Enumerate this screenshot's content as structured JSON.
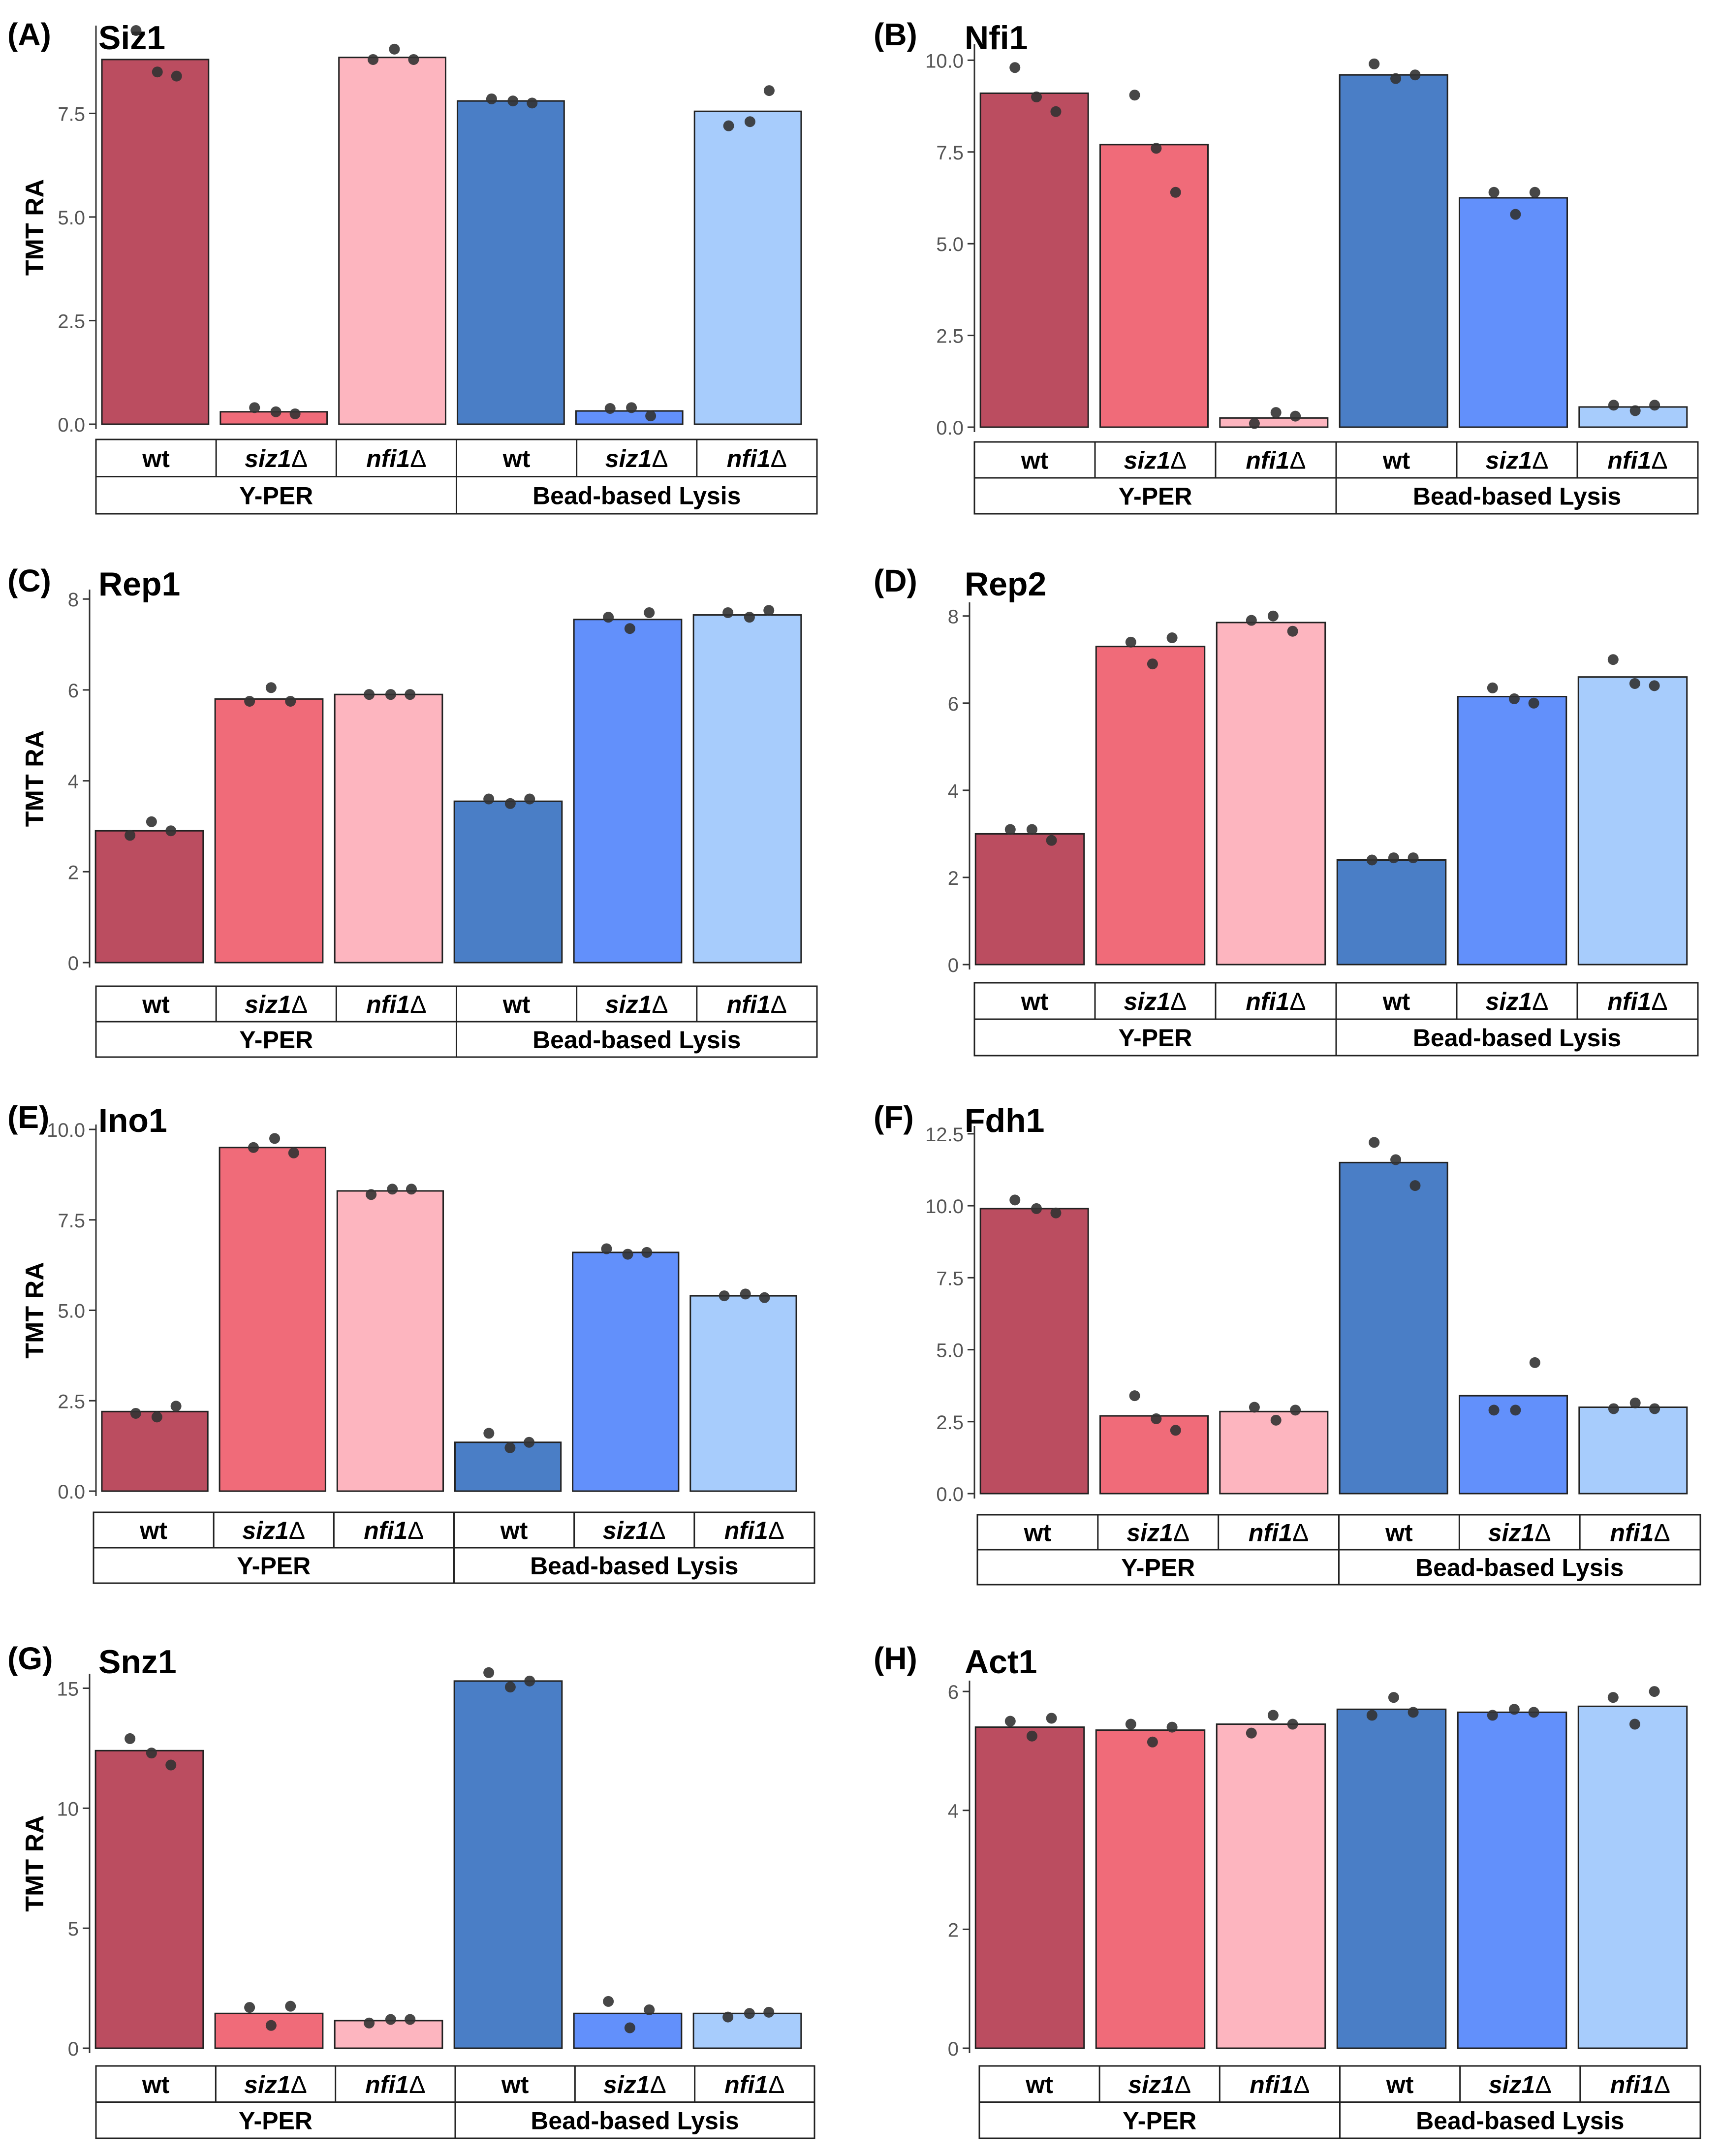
{
  "figure": {
    "y_label": "TMT RA"
  },
  "chart_data": [
    {
      "panel": "(A)",
      "type": "bar",
      "title": "Siz1",
      "ylabel": "TMT RA",
      "ylim": [
        0,
        9.5
      ],
      "ticks": [
        "0.0",
        "2.5",
        "5.0",
        "7.5"
      ],
      "tick_values": [
        0,
        2.5,
        5,
        7.5
      ],
      "categories": [
        "wt",
        "siz1Δ",
        "nfi1Δ",
        "wt",
        "siz1Δ",
        "nfi1Δ"
      ],
      "groups": [
        "Y-PER",
        "Bead-based Lysis"
      ],
      "values": [
        8.8,
        0.3,
        8.85,
        7.8,
        0.32,
        7.55
      ],
      "points": [
        [
          9.5,
          8.5,
          8.4
        ],
        [
          0.4,
          0.3,
          0.25
        ],
        [
          8.8,
          9.05,
          8.8
        ],
        [
          7.85,
          7.8,
          7.75
        ],
        [
          0.38,
          0.4,
          0.2
        ],
        [
          7.2,
          7.3,
          8.05
        ]
      ]
    },
    {
      "panel": "(B)",
      "type": "bar",
      "title": "Nfi1",
      "ylabel": "",
      "ylim": [
        0,
        10.3
      ],
      "ticks": [
        "0.0",
        "2.5",
        "5.0",
        "7.5",
        "10.0"
      ],
      "tick_values": [
        0,
        2.5,
        5,
        7.5,
        10
      ],
      "categories": [
        "wt",
        "siz1Δ",
        "nfi1Δ",
        "wt",
        "siz1Δ",
        "nfi1Δ"
      ],
      "groups": [
        "Y-PER",
        "Bead-based Lysis"
      ],
      "values": [
        9.1,
        7.7,
        0.25,
        9.6,
        6.25,
        0.55
      ],
      "points": [
        [
          9.8,
          9.0,
          8.6
        ],
        [
          9.05,
          7.6,
          6.4
        ],
        [
          0.1,
          0.4,
          0.3
        ],
        [
          9.9,
          9.5,
          9.6
        ],
        [
          6.4,
          5.8,
          6.4
        ],
        [
          0.6,
          0.45,
          0.6
        ]
      ]
    },
    {
      "panel": "(C)",
      "type": "bar",
      "title": "Rep1",
      "ylabel": "TMT RA",
      "ylim": [
        0,
        8.1
      ],
      "ticks": [
        "0",
        "2",
        "4",
        "6",
        "8"
      ],
      "tick_values": [
        0,
        2,
        4,
        6,
        8
      ],
      "categories": [
        "wt",
        "siz1Δ",
        "nfi1Δ",
        "wt",
        "siz1Δ",
        "nfi1Δ"
      ],
      "groups": [
        "Y-PER",
        "Bead-based Lysis"
      ],
      "values": [
        2.9,
        5.8,
        5.9,
        3.55,
        7.55,
        7.65
      ],
      "points": [
        [
          2.8,
          3.1,
          2.9
        ],
        [
          5.75,
          6.05,
          5.75
        ],
        [
          5.9,
          5.9,
          5.9
        ],
        [
          3.6,
          3.5,
          3.6
        ],
        [
          7.6,
          7.35,
          7.7
        ],
        [
          7.7,
          7.6,
          7.75
        ]
      ]
    },
    {
      "panel": "(D)",
      "type": "bar",
      "title": "Rep2",
      "ylabel": "",
      "ylim": [
        0,
        8.2
      ],
      "ticks": [
        "0",
        "2",
        "4",
        "6",
        "8"
      ],
      "tick_values": [
        0,
        2,
        4,
        6,
        8
      ],
      "categories": [
        "wt",
        "siz1Δ",
        "nfi1Δ",
        "wt",
        "siz1Δ",
        "nfi1Δ"
      ],
      "groups": [
        "Y-PER",
        "Bead-based Lysis"
      ],
      "values": [
        3.0,
        7.3,
        7.85,
        2.4,
        6.15,
        6.6
      ],
      "points": [
        [
          3.1,
          3.1,
          2.85
        ],
        [
          7.4,
          6.9,
          7.5
        ],
        [
          7.9,
          8.0,
          7.65
        ],
        [
          2.4,
          2.45,
          2.45
        ],
        [
          6.35,
          6.1,
          6.0
        ],
        [
          7.0,
          6.45,
          6.4
        ]
      ]
    },
    {
      "panel": "(E)",
      "type": "bar",
      "title": "Ino1",
      "ylabel": "TMT RA",
      "ylim": [
        0,
        10.0
      ],
      "ticks": [
        "0.0",
        "2.5",
        "5.0",
        "7.5",
        "10.0"
      ],
      "tick_values": [
        0,
        2.5,
        5,
        7.5,
        10
      ],
      "categories": [
        "wt",
        "siz1Δ",
        "nfi1Δ",
        "wt",
        "siz1Δ",
        "nfi1Δ"
      ],
      "groups": [
        "Y-PER",
        "Bead-based Lysis"
      ],
      "values": [
        2.2,
        9.5,
        8.3,
        1.35,
        6.6,
        5.4
      ],
      "points": [
        [
          2.15,
          2.05,
          2.35
        ],
        [
          9.5,
          9.75,
          9.35
        ],
        [
          8.2,
          8.35,
          8.35
        ],
        [
          1.6,
          1.2,
          1.35
        ],
        [
          6.7,
          6.55,
          6.6
        ],
        [
          5.4,
          5.45,
          5.35
        ]
      ]
    },
    {
      "panel": "(F)",
      "type": "bar",
      "title": "Fdh1",
      "ylabel": "",
      "ylim": [
        0,
        12.6
      ],
      "ticks": [
        "0.0",
        "2.5",
        "5.0",
        "7.5",
        "10.0",
        "12.5"
      ],
      "tick_values": [
        0,
        2.5,
        5,
        7.5,
        10,
        12.5
      ],
      "categories": [
        "wt",
        "siz1Δ",
        "nfi1Δ",
        "wt",
        "siz1Δ",
        "nfi1Δ"
      ],
      "groups": [
        "Y-PER",
        "Bead-based Lysis"
      ],
      "values": [
        9.9,
        2.7,
        2.85,
        11.5,
        3.4,
        3.0
      ],
      "points": [
        [
          10.2,
          9.9,
          9.75
        ],
        [
          3.4,
          2.6,
          2.2
        ],
        [
          3.0,
          2.55,
          2.9
        ],
        [
          12.2,
          11.6,
          10.7
        ],
        [
          2.9,
          2.9,
          4.55
        ],
        [
          2.95,
          3.15,
          2.95
        ]
      ]
    },
    {
      "panel": "(G)",
      "type": "bar",
      "title": "Snz1",
      "ylabel": "TMT RA",
      "ylim": [
        0,
        15.4
      ],
      "ticks": [
        "0",
        "5",
        "10",
        "15"
      ],
      "tick_values": [
        0,
        5,
        10,
        15
      ],
      "categories": [
        "wt",
        "siz1Δ",
        "nfi1Δ",
        "wt",
        "siz1Δ",
        "nfi1Δ"
      ],
      "groups": [
        "Y-PER",
        "Bead-based Lysis"
      ],
      "values": [
        12.4,
        1.45,
        1.15,
        15.3,
        1.45,
        1.45
      ],
      "points": [
        [
          12.9,
          12.3,
          11.8
        ],
        [
          1.7,
          0.95,
          1.75
        ],
        [
          1.05,
          1.2,
          1.2
        ],
        [
          15.65,
          15.05,
          15.3
        ],
        [
          1.95,
          0.85,
          1.6
        ],
        [
          1.3,
          1.45,
          1.5
        ]
      ]
    },
    {
      "panel": "(H)",
      "type": "bar",
      "title": "Act1",
      "ylabel": "",
      "ylim": [
        0,
        6.1
      ],
      "ticks": [
        "0",
        "2",
        "4",
        "6"
      ],
      "tick_values": [
        0,
        2,
        4,
        6
      ],
      "categories": [
        "wt",
        "siz1Δ",
        "nfi1Δ",
        "wt",
        "siz1Δ",
        "nfi1Δ"
      ],
      "groups": [
        "Y-PER",
        "Bead-based Lysis"
      ],
      "values": [
        5.4,
        5.35,
        5.45,
        5.7,
        5.65,
        5.75
      ],
      "points": [
        [
          5.5,
          5.25,
          5.55
        ],
        [
          5.45,
          5.15,
          5.4
        ],
        [
          5.3,
          5.6,
          5.45
        ],
        [
          5.6,
          5.9,
          5.65
        ],
        [
          5.6,
          5.7,
          5.65
        ],
        [
          5.9,
          5.45,
          6.0
        ]
      ]
    }
  ],
  "colors": {
    "bars": [
      "#bb4d60",
      "#f06b79",
      "#fdb5bf",
      "#4a7ec6",
      "#6290fb",
      "#a7ccfc"
    ],
    "point": "#333333",
    "axis": "#333333",
    "tick_label": "#555555"
  }
}
